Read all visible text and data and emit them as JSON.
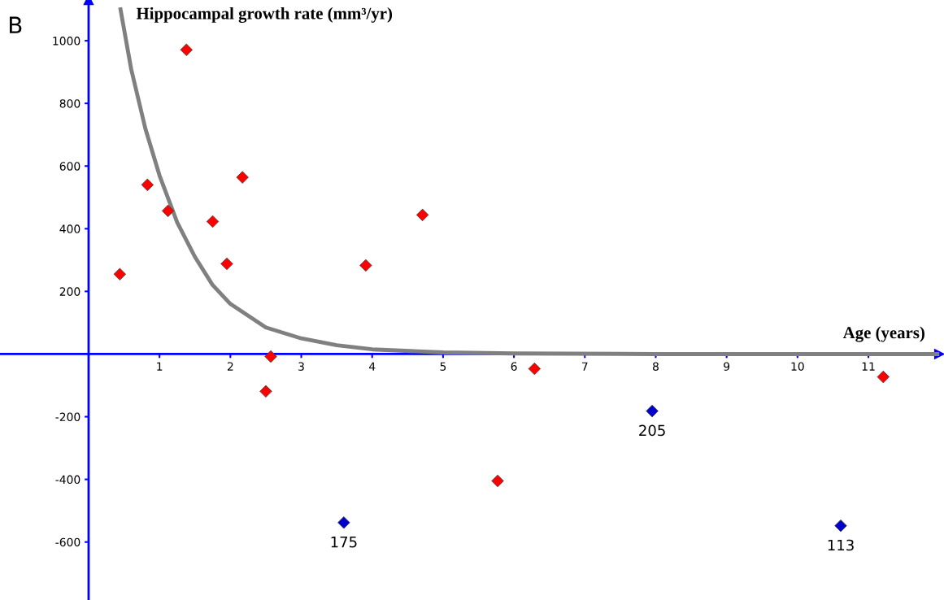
{
  "chart_data": {
    "type": "scatter",
    "ylabel": "Hippocampal growth rate (mm³/yr)",
    "xlabel": "Age (years)",
    "xlim": [
      -1.25,
      12.0
    ],
    "ylim": [
      -785,
      1130
    ],
    "xticks": [
      1,
      2,
      3,
      4,
      5,
      6,
      7,
      8,
      9,
      10,
      11
    ],
    "yticks": [
      -600,
      -400,
      -200,
      200,
      400,
      600,
      800,
      1000
    ],
    "grid": false,
    "marker": "diamond",
    "series": [
      {
        "color": "#ff0000",
        "x": [
          0.44,
          0.83,
          1.12,
          1.38,
          1.75,
          1.95,
          2.17,
          2.5,
          2.57,
          3.91,
          4.71,
          5.77,
          6.29,
          11.21
        ],
        "values": [
          255,
          540,
          457,
          971,
          423,
          288,
          564,
          -119,
          -8,
          283,
          444,
          -405,
          -47,
          -73
        ]
      },
      {
        "color": "#0000cc",
        "x": [
          3.6,
          7.95,
          10.61
        ],
        "values": [
          -538,
          -182,
          -548
        ]
      },
      {
        "type": "line",
        "color": "#808080",
        "marker": "none",
        "x": [
          0.45,
          0.6,
          0.8,
          1,
          1.25,
          1.5,
          1.75,
          2,
          2.5,
          3,
          3.5,
          4,
          5,
          6,
          8,
          10,
          12
        ],
        "values": [
          1100,
          910,
          720,
          570,
          420,
          310,
          220,
          160,
          85,
          50,
          28,
          15,
          5,
          2,
          0,
          0,
          0
        ]
      }
    ],
    "annotations": [
      "B",
      {
        "text": "175",
        "x": 3.6,
        "y": -538
      },
      {
        "text": "205",
        "x": 7.95,
        "y": -182
      },
      {
        "text": "113",
        "x": 10.61,
        "y": -548
      }
    ]
  }
}
